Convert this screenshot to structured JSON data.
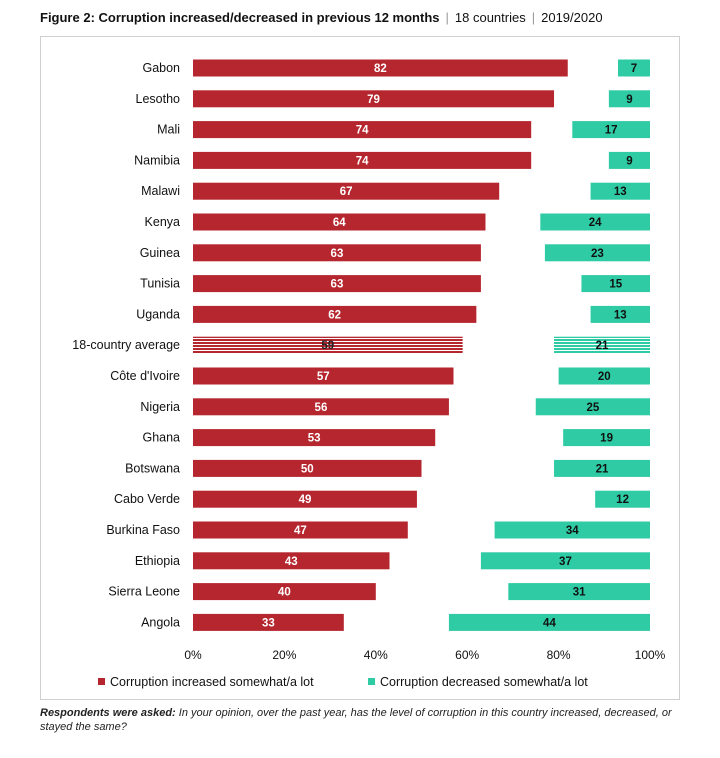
{
  "title": {
    "main": "Figure 2: Corruption increased/decreased in previous 12 months",
    "countries": "18 countries",
    "period": "2019/2020"
  },
  "note": {
    "lead": "Respondents were asked:",
    "text": "In your opinion, over the past year, has the level of corruption in this country increased, decreased, or stayed the same?"
  },
  "colors": {
    "increased": "#b5262e",
    "decreased": "#2ecba4"
  },
  "chart_data": {
    "type": "bar",
    "orientation": "horizontal",
    "categories": [
      "Gabon",
      "Lesotho",
      "Mali",
      "Namibia",
      "Malawi",
      "Kenya",
      "Guinea",
      "Tunisia",
      "Uganda",
      "18-country average",
      "Côte d'Ivoire",
      "Nigeria",
      "Ghana",
      "Botswana",
      "Cabo Verde",
      "Burkina Faso",
      "Ethiopia",
      "Sierra Leone",
      "Angola"
    ],
    "highlight_category": "18-country average",
    "series": [
      {
        "name": "Corruption increased somewhat/a lot",
        "values": [
          82,
          79,
          74,
          74,
          67,
          64,
          63,
          63,
          62,
          59,
          57,
          56,
          53,
          50,
          49,
          47,
          43,
          40,
          33
        ]
      },
      {
        "name": "Corruption decreased somewhat/a lot",
        "values": [
          7,
          9,
          17,
          9,
          13,
          24,
          23,
          15,
          13,
          21,
          20,
          25,
          19,
          21,
          12,
          34,
          37,
          31,
          44
        ]
      }
    ],
    "xlim": [
      0,
      100
    ],
    "xticks": [
      "0%",
      "20%",
      "40%",
      "60%",
      "80%",
      "100%"
    ],
    "legend_position": "bottom",
    "grid": false
  }
}
